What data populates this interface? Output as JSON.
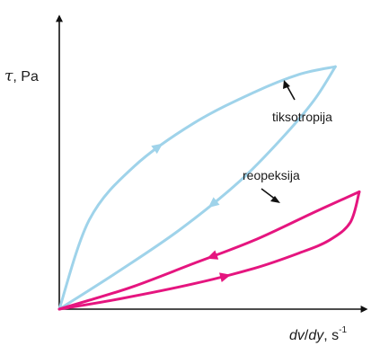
{
  "chart_data": {
    "type": "line",
    "title": "",
    "ylabel": {
      "symbol": "τ",
      "rest": ", Pa"
    },
    "xlabel": {
      "dv": "dv",
      "slash": "/",
      "dy": "dy",
      "rest": ", s",
      "exp": "-1"
    },
    "xlim": [
      0,
      1
    ],
    "ylim": [
      0,
      1
    ],
    "grid": false,
    "colors": {
      "axis": "#111111",
      "thixotropy": "#9fd3ea",
      "rheopexy": "#e5157f"
    },
    "series": [
      {
        "name": "tiksotropija",
        "color": "#9fd3ea",
        "up": {
          "x": [
            0,
            0.1,
            0.25,
            0.45,
            0.65,
            0.8,
            0.92
          ],
          "y": [
            0,
            0.35,
            0.56,
            0.73,
            0.85,
            0.92,
            0.95
          ]
        },
        "down": {
          "x": [
            0.92,
            0.85,
            0.75,
            0.6,
            0.4,
            0.2,
            0
          ],
          "y": [
            0.95,
            0.82,
            0.68,
            0.5,
            0.31,
            0.15,
            0
          ]
        }
      },
      {
        "name": "reopeksija",
        "color": "#e5157f",
        "up": {
          "x": [
            0,
            0.2,
            0.45,
            0.65,
            0.8,
            0.9,
            0.97,
            1.0
          ],
          "y": [
            0,
            0.04,
            0.1,
            0.16,
            0.22,
            0.27,
            0.34,
            0.46
          ]
        },
        "down": {
          "x": [
            1.0,
            0.85,
            0.65,
            0.45,
            0.25,
            0.1,
            0
          ],
          "y": [
            0.46,
            0.38,
            0.27,
            0.18,
            0.09,
            0.035,
            0
          ]
        }
      }
    ]
  }
}
